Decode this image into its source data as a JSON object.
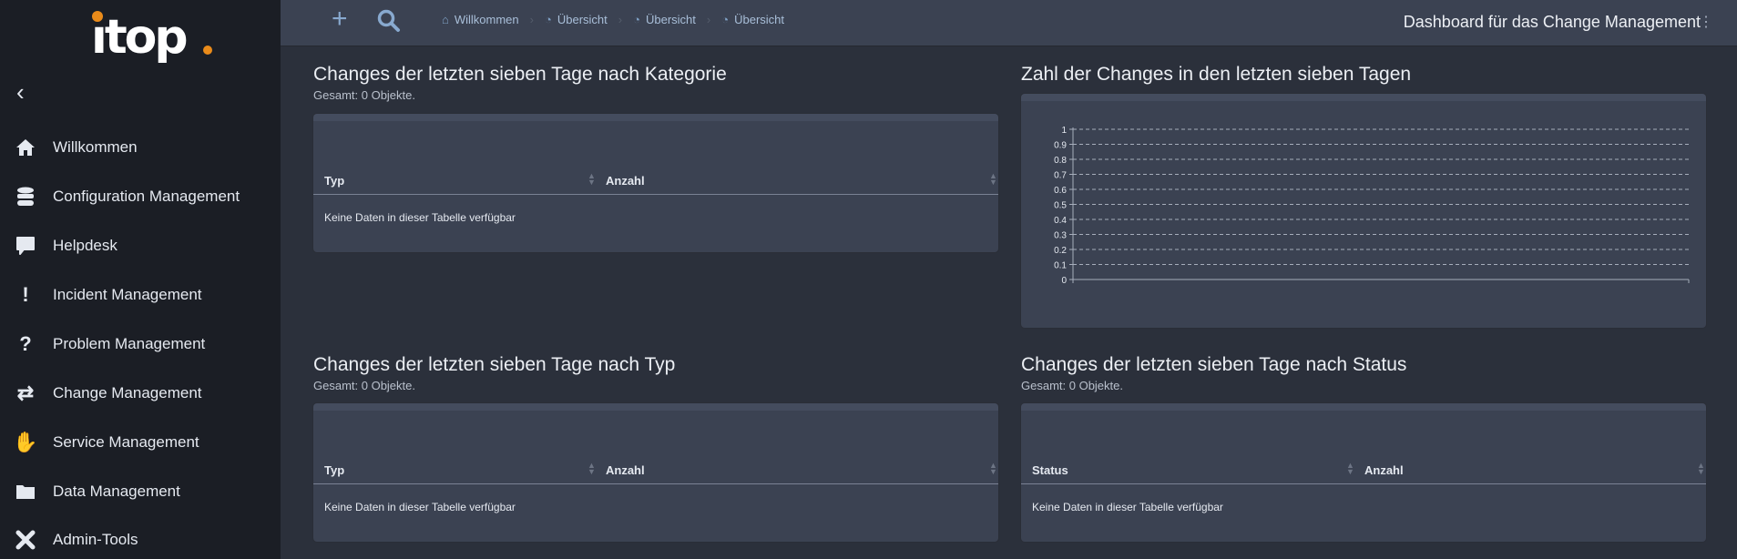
{
  "app": {
    "logo_text": "itop",
    "colors": {
      "accent": "#ea8b1a",
      "sidebar": "#1b1e25",
      "panel": "#3b4252"
    }
  },
  "sidebar": {
    "back_icon": "chevron-left-icon",
    "items": [
      {
        "label": "Willkommen",
        "icon": "home-icon"
      },
      {
        "label": "Configuration Management",
        "icon": "database-icon"
      },
      {
        "label": "Helpdesk",
        "icon": "comment-icon"
      },
      {
        "label": "Incident Management",
        "icon": "exclamation-icon"
      },
      {
        "label": "Problem Management",
        "icon": "question-icon"
      },
      {
        "label": "Change Management",
        "icon": "exchange-icon"
      },
      {
        "label": "Service Management",
        "icon": "handshake-icon"
      },
      {
        "label": "Data Management",
        "icon": "folder-icon"
      },
      {
        "label": "Admin-Tools",
        "icon": "tools-icon"
      }
    ]
  },
  "topbar": {
    "breadcrumbs": [
      {
        "label": "Willkommen",
        "icon": "home-icon"
      },
      {
        "label": "Übersicht",
        "icon": "pie-chart-icon"
      },
      {
        "label": "Übersicht",
        "icon": "pie-chart-icon"
      },
      {
        "label": "Übersicht",
        "icon": "pie-chart-icon"
      }
    ],
    "title": "Dashboard für das Change Management"
  },
  "dashlets": [
    {
      "title": "Changes der letzten sieben Tage nach Kategorie",
      "subtitle": "Gesamt: 0 Objekte.",
      "columns": [
        "Typ",
        "Anzahl"
      ],
      "empty": "Keine Daten in dieser Tabelle verfügbar"
    },
    {
      "title": "Zahl der Changes in den letzten sieben Tagen"
    },
    {
      "title": "Changes der letzten sieben Tage nach Typ",
      "subtitle": "Gesamt: 0 Objekte.",
      "columns": [
        "Typ",
        "Anzahl"
      ],
      "empty": "Keine Daten in dieser Tabelle verfügbar"
    },
    {
      "title": "Changes der letzten sieben Tage nach Status",
      "subtitle": "Gesamt: 0 Objekte.",
      "columns": [
        "Status",
        "Anzahl"
      ],
      "empty": "Keine Daten in dieser Tabelle verfügbar"
    }
  ],
  "chart_data": {
    "type": "line",
    "series": [],
    "ylim": [
      0,
      1
    ],
    "yticks": [
      "0",
      "0.1",
      "0.2",
      "0.3",
      "0.4",
      "0.5",
      "0.6",
      "0.7",
      "0.8",
      "0.9",
      "1"
    ],
    "grid": true,
    "title": "",
    "xlabel": "",
    "ylabel": ""
  }
}
